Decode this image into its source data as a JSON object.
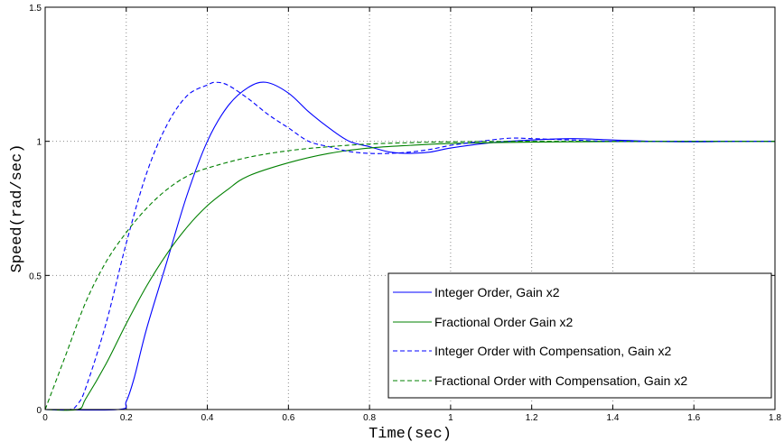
{
  "chart_data": {
    "type": "line",
    "title": "",
    "xlabel": "Time(sec)",
    "ylabel": "Speed(rad/sec)",
    "xlim": [
      0,
      1.8
    ],
    "ylim": [
      0,
      1.5
    ],
    "x_ticks": [
      "0",
      "0.2",
      "0.4",
      "0.6",
      "0.8",
      "1",
      "1.2",
      "1.4",
      "1.6",
      "1.8"
    ],
    "y_ticks": [
      "0",
      "0.5",
      "1",
      "1.5"
    ],
    "x_tick_values": [
      0,
      0.2,
      0.4,
      0.6,
      0.8,
      1.0,
      1.2,
      1.4,
      1.6,
      1.8
    ],
    "y_tick_values": [
      0,
      0.5,
      1.0,
      1.5
    ],
    "grid": true,
    "legend_position": "bottom-right",
    "series": [
      {
        "name": "Integer Order, Gain x2",
        "color": "#0000ff",
        "style": "solid",
        "points": [
          [
            0,
            0
          ],
          [
            0.18,
            0
          ],
          [
            0.2,
            0.03
          ],
          [
            0.22,
            0.12
          ],
          [
            0.25,
            0.3
          ],
          [
            0.3,
            0.55
          ],
          [
            0.35,
            0.8
          ],
          [
            0.4,
            1.0
          ],
          [
            0.45,
            1.13
          ],
          [
            0.5,
            1.2
          ],
          [
            0.545,
            1.22
          ],
          [
            0.6,
            1.18
          ],
          [
            0.65,
            1.11
          ],
          [
            0.7,
            1.05
          ],
          [
            0.75,
            1.0
          ],
          [
            0.8,
            0.98
          ],
          [
            0.85,
            0.96
          ],
          [
            0.9,
            0.955
          ],
          [
            0.95,
            0.96
          ],
          [
            1.0,
            0.975
          ],
          [
            1.1,
            0.995
          ],
          [
            1.2,
            1.005
          ],
          [
            1.3,
            1.01
          ],
          [
            1.4,
            1.005
          ],
          [
            1.5,
            1.0
          ],
          [
            1.6,
            0.998
          ],
          [
            1.7,
            1.0
          ],
          [
            1.8,
            1.0
          ]
        ]
      },
      {
        "name": "Fractional Order Gain x2",
        "color": "#008000",
        "style": "solid",
        "points": [
          [
            0,
            0
          ],
          [
            0.08,
            0
          ],
          [
            0.1,
            0.04
          ],
          [
            0.15,
            0.17
          ],
          [
            0.2,
            0.32
          ],
          [
            0.25,
            0.46
          ],
          [
            0.3,
            0.58
          ],
          [
            0.35,
            0.68
          ],
          [
            0.4,
            0.76
          ],
          [
            0.45,
            0.82
          ],
          [
            0.5,
            0.87
          ],
          [
            0.6,
            0.92
          ],
          [
            0.7,
            0.955
          ],
          [
            0.8,
            0.975
          ],
          [
            0.9,
            0.985
          ],
          [
            1.0,
            0.992
          ],
          [
            1.2,
            0.997
          ],
          [
            1.4,
            0.999
          ],
          [
            1.6,
            1.0
          ],
          [
            1.8,
            1.0
          ]
        ]
      },
      {
        "name": "Integer Order with Compensation, Gain x2",
        "color": "#0000ff",
        "style": "dashed",
        "points": [
          [
            0,
            0
          ],
          [
            0.06,
            0
          ],
          [
            0.08,
            0.02
          ],
          [
            0.1,
            0.08
          ],
          [
            0.15,
            0.32
          ],
          [
            0.2,
            0.62
          ],
          [
            0.25,
            0.88
          ],
          [
            0.3,
            1.06
          ],
          [
            0.35,
            1.17
          ],
          [
            0.4,
            1.21
          ],
          [
            0.42,
            1.22
          ],
          [
            0.45,
            1.21
          ],
          [
            0.5,
            1.16
          ],
          [
            0.55,
            1.1
          ],
          [
            0.6,
            1.05
          ],
          [
            0.65,
            1.0
          ],
          [
            0.7,
            0.98
          ],
          [
            0.75,
            0.962
          ],
          [
            0.8,
            0.955
          ],
          [
            0.85,
            0.955
          ],
          [
            0.9,
            0.96
          ],
          [
            0.95,
            0.97
          ],
          [
            1.0,
            0.985
          ],
          [
            1.05,
            0.995
          ],
          [
            1.1,
            1.005
          ],
          [
            1.15,
            1.012
          ],
          [
            1.2,
            1.01
          ],
          [
            1.3,
            1.005
          ],
          [
            1.4,
            1.0
          ],
          [
            1.6,
            1.0
          ],
          [
            1.8,
            1.0
          ]
        ]
      },
      {
        "name": "Fractional Order with Compensation, Gain x2",
        "color": "#008000",
        "style": "dashed",
        "points": [
          [
            0,
            0
          ],
          [
            0.01,
            0.04
          ],
          [
            0.05,
            0.2
          ],
          [
            0.1,
            0.4
          ],
          [
            0.15,
            0.55
          ],
          [
            0.2,
            0.66
          ],
          [
            0.25,
            0.75
          ],
          [
            0.3,
            0.82
          ],
          [
            0.35,
            0.87
          ],
          [
            0.4,
            0.9
          ],
          [
            0.5,
            0.94
          ],
          [
            0.6,
            0.965
          ],
          [
            0.7,
            0.98
          ],
          [
            0.8,
            0.99
          ],
          [
            0.9,
            0.995
          ],
          [
            1.0,
            0.998
          ],
          [
            1.2,
            1.0
          ],
          [
            1.8,
            1.0
          ]
        ]
      }
    ]
  }
}
